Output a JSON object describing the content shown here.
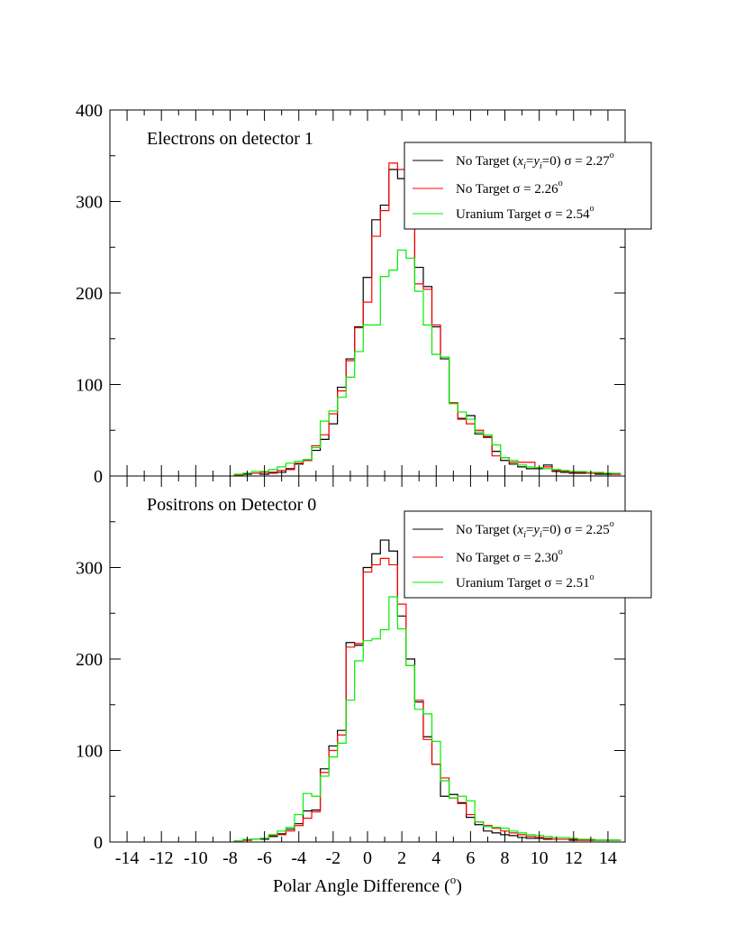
{
  "figure": {
    "xlabel_main": "Polar Angle Difference (",
    "xlabel_sup": "o",
    "xlabel_close": ")"
  },
  "chart_data": [
    {
      "type": "line",
      "step": true,
      "title": "Electrons on detector 1",
      "xlim": [
        -15,
        15
      ],
      "ylim": [
        0,
        400
      ],
      "yticks": [
        "0",
        "100",
        "200",
        "300",
        "400"
      ],
      "xticks": [
        "-14",
        "-12",
        "-10",
        "-8",
        "-6",
        "-4",
        "-2",
        "0",
        "2",
        "4",
        "6",
        "8",
        "10",
        "12",
        "14"
      ],
      "show_x_tick_labels": false,
      "grid": false,
      "legend_position": "top-right",
      "x": [
        -7.5,
        -7.0,
        -6.5,
        -6.0,
        -5.5,
        -5.0,
        -4.5,
        -4.0,
        -3.5,
        -3.0,
        -2.5,
        -2.0,
        -1.5,
        -1.0,
        -0.5,
        0.0,
        0.5,
        1.0,
        1.5,
        2.0,
        2.5,
        3.0,
        3.5,
        4.0,
        4.5,
        5.0,
        5.5,
        6.0,
        6.5,
        7.0,
        7.5,
        8.0,
        8.5,
        9.0,
        9.5,
        10.0,
        10.5,
        11.0,
        11.5,
        12.0,
        12.5,
        13.0,
        13.5,
        14.0,
        14.5
      ],
      "series": [
        {
          "legend_pre": "No Target (",
          "legend_x": "x",
          "legend_sub1": "i",
          "legend_eq": "=",
          "legend_y": "y",
          "legend_sub2": "i",
          "legend_post": "=0) σ = 2.27",
          "legend_deg": "o",
          "color": "#000000",
          "values": [
            1,
            2,
            3,
            2,
            4,
            4,
            8,
            13,
            17,
            28,
            40,
            57,
            97,
            128,
            163,
            217,
            280,
            296,
            335,
            325,
            296,
            228,
            207,
            163,
            128,
            80,
            63,
            66,
            46,
            43,
            27,
            17,
            13,
            10,
            8,
            8,
            12,
            5,
            4,
            3,
            3,
            3,
            2,
            2,
            2
          ]
        },
        {
          "legend_pre": "No Target σ = 2.26",
          "legend_deg": "o",
          "color": "#ff0000",
          "values": [
            1,
            3,
            3,
            4,
            3,
            6,
            7,
            14,
            17,
            33,
            45,
            68,
            93,
            126,
            162,
            190,
            262,
            290,
            342,
            335,
            305,
            210,
            204,
            165,
            130,
            80,
            62,
            57,
            50,
            42,
            22,
            20,
            15,
            15,
            15,
            9,
            10,
            6,
            5,
            4,
            4,
            3,
            3,
            3,
            2
          ]
        },
        {
          "legend_pre": "Uranium Target σ = 2.54",
          "legend_deg": "o",
          "color": "#00ee00",
          "values": [
            2,
            3,
            5,
            5,
            7,
            10,
            14,
            16,
            18,
            31,
            60,
            71,
            86,
            108,
            136,
            165,
            165,
            218,
            225,
            247,
            238,
            202,
            165,
            133,
            130,
            79,
            70,
            62,
            48,
            45,
            34,
            20,
            17,
            12,
            10,
            9,
            8,
            7,
            6,
            5,
            5,
            4,
            4,
            3,
            3
          ]
        }
      ]
    },
    {
      "type": "line",
      "step": true,
      "title": "Positrons on Detector 0",
      "xlim": [
        -15,
        15
      ],
      "ylim": [
        0,
        400
      ],
      "yticks": [
        "0",
        "100",
        "200",
        "300"
      ],
      "xticks": [
        "-14",
        "-12",
        "-10",
        "-8",
        "-6",
        "-4",
        "-2",
        "0",
        "2",
        "4",
        "6",
        "8",
        "10",
        "12",
        "14"
      ],
      "show_x_tick_labels": true,
      "grid": false,
      "legend_position": "top-right",
      "x": [
        -7.5,
        -7.0,
        -6.5,
        -6.0,
        -5.5,
        -5.0,
        -4.5,
        -4.0,
        -3.5,
        -3.0,
        -2.5,
        -2.0,
        -1.5,
        -1.0,
        -0.5,
        0.0,
        0.5,
        1.0,
        1.5,
        2.0,
        2.5,
        3.0,
        3.5,
        4.0,
        4.5,
        5.0,
        5.5,
        6.0,
        6.5,
        7.0,
        7.5,
        8.0,
        8.5,
        9.0,
        9.5,
        10.0,
        10.5,
        11.0,
        11.5,
        12.0,
        12.5,
        13.0,
        13.5,
        14.0,
        14.5
      ],
      "series": [
        {
          "legend_pre": "No Target (",
          "legend_x": "x",
          "legend_sub1": "i",
          "legend_eq": "=",
          "legend_y": "y",
          "legend_sub2": "i",
          "legend_post": "=0) σ = 2.25",
          "legend_deg": "o",
          "color": "#000000",
          "values": [
            1,
            2,
            3,
            3,
            6,
            9,
            14,
            20,
            34,
            35,
            80,
            105,
            122,
            218,
            215,
            300,
            315,
            330,
            318,
            247,
            200,
            153,
            115,
            85,
            50,
            52,
            43,
            27,
            19,
            12,
            10,
            8,
            7,
            5,
            4,
            4,
            3,
            3,
            3,
            2,
            2,
            2,
            2,
            2,
            2
          ]
        },
        {
          "legend_pre": "No Target σ = 2.30",
          "legend_deg": "o",
          "color": "#ff0000",
          "values": [
            1,
            2,
            3,
            4,
            7,
            8,
            12,
            18,
            26,
            33,
            76,
            100,
            117,
            213,
            217,
            295,
            303,
            310,
            303,
            260,
            193,
            155,
            112,
            85,
            70,
            48,
            42,
            30,
            22,
            18,
            15,
            12,
            10,
            8,
            6,
            5,
            4,
            3,
            3,
            3,
            2,
            2,
            2,
            2,
            2
          ]
        },
        {
          "legend_pre": "Uranium Target σ = 2.51",
          "legend_deg": "o",
          "color": "#00ee00",
          "values": [
            1,
            3,
            3,
            4,
            8,
            12,
            16,
            30,
            53,
            50,
            72,
            93,
            108,
            155,
            198,
            220,
            222,
            232,
            268,
            233,
            193,
            145,
            140,
            110,
            67,
            48,
            50,
            45,
            22,
            17,
            16,
            15,
            12,
            10,
            8,
            7,
            6,
            5,
            5,
            4,
            3,
            3,
            2,
            2,
            2
          ]
        }
      ]
    }
  ]
}
